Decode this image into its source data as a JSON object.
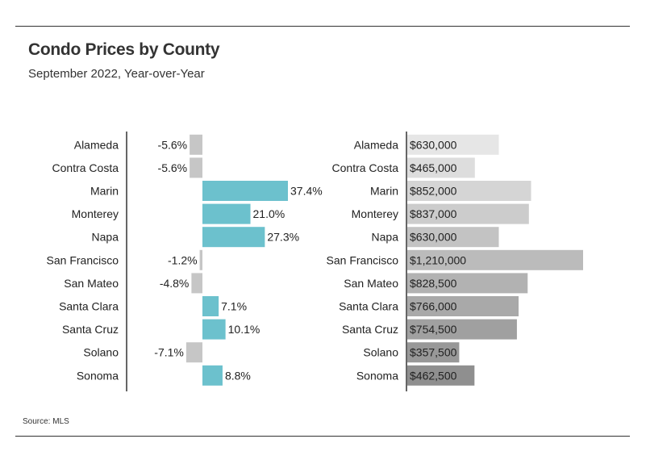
{
  "header": {
    "title": "Condo Prices by County",
    "subtitle": "September 2022, Year-over-Year"
  },
  "footer": {
    "source": "Source: MLS"
  },
  "colors": {
    "positive": "#6cc1cd",
    "negative": "#c6c6c6",
    "price_light": "#e6e6e6",
    "price_dark": "#8f8f8f",
    "axis": "#333333"
  },
  "chart_data": [
    {
      "type": "bar",
      "orientation": "horizontal",
      "categories": [
        "Alameda",
        "Contra Costa",
        "Marin",
        "Monterey",
        "Napa",
        "San Francisco",
        "San Mateo",
        "Santa Clara",
        "Santa Cruz",
        "Solano",
        "Sonoma"
      ],
      "values": [
        -5.6,
        -5.6,
        37.4,
        21.0,
        27.3,
        -1.2,
        -4.8,
        7.1,
        10.1,
        -7.1,
        8.8
      ],
      "labels": [
        "-5.6%",
        "-5.6%",
        "37.4%",
        "21.0%",
        "27.3%",
        "-1.2%",
        "-4.8%",
        "7.1%",
        "10.1%",
        "-7.1%",
        "8.8%"
      ],
      "xlim": [
        -40,
        40
      ]
    },
    {
      "type": "bar",
      "orientation": "horizontal",
      "categories": [
        "Alameda",
        "Contra Costa",
        "Marin",
        "Monterey",
        "Napa",
        "San Francisco",
        "San Mateo",
        "Santa Clara",
        "Santa Cruz",
        "Solano",
        "Sonoma"
      ],
      "values": [
        630000,
        465000,
        852000,
        837000,
        630000,
        1210000,
        828500,
        766000,
        754500,
        357500,
        462500
      ],
      "labels": [
        "$630,000",
        "$465,000",
        "$852,000",
        "$837,000",
        "$630,000",
        "$1,210,000",
        "$828,500",
        "$766,000",
        "$754,500",
        "$357,500",
        "$462,500"
      ],
      "xlim": [
        0,
        1210000
      ]
    }
  ]
}
